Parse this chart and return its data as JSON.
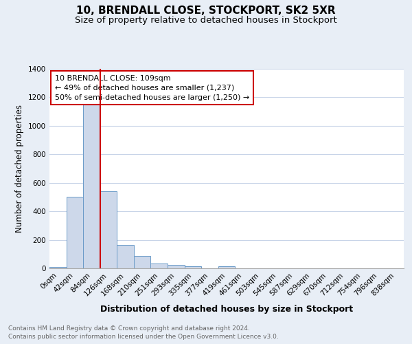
{
  "title1": "10, BRENDALL CLOSE, STOCKPORT, SK2 5XR",
  "title2": "Size of property relative to detached houses in Stockport",
  "xlabel": "Distribution of detached houses by size in Stockport",
  "ylabel": "Number of detached properties",
  "footnote1": "Contains HM Land Registry data © Crown copyright and database right 2024.",
  "footnote2": "Contains public sector information licensed under the Open Government Licence v3.0.",
  "bar_labels": [
    "0sqm",
    "42sqm",
    "84sqm",
    "126sqm",
    "168sqm",
    "210sqm",
    "251sqm",
    "293sqm",
    "335sqm",
    "377sqm",
    "419sqm",
    "461sqm",
    "503sqm",
    "545sqm",
    "587sqm",
    "629sqm",
    "670sqm",
    "712sqm",
    "754sqm",
    "796sqm",
    "838sqm"
  ],
  "bar_values": [
    10,
    500,
    1155,
    540,
    163,
    85,
    35,
    22,
    15,
    0,
    13,
    0,
    0,
    0,
    0,
    0,
    0,
    0,
    0,
    0,
    0
  ],
  "bar_color": "#cdd8ea",
  "bar_edge_color": "#6b9bc8",
  "vline_x": 2.5,
  "annotation_line1": "10 BRENDALL CLOSE: 109sqm",
  "annotation_line2": "← 49% of detached houses are smaller (1,237)",
  "annotation_line3": "50% of semi-detached houses are larger (1,250) →",
  "annotation_box_color": "#ffffff",
  "annotation_box_edge": "#cc0000",
  "ylim": [
    0,
    1400
  ],
  "yticks": [
    0,
    200,
    400,
    600,
    800,
    1000,
    1200,
    1400
  ],
  "bg_color": "#e8eef6",
  "plot_bg_color": "#ffffff",
  "grid_color": "#c8d4e8",
  "vline_color": "#cc0000",
  "title_fontsize": 11,
  "subtitle_fontsize": 9.5,
  "xlabel_fontsize": 9,
  "ylabel_fontsize": 8.5,
  "tick_fontsize": 7.5,
  "annot_fontsize": 8,
  "footnote_fontsize": 6.5
}
